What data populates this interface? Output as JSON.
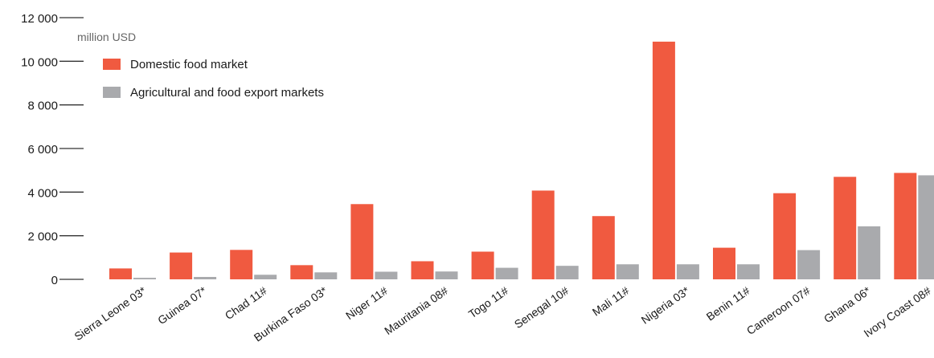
{
  "chart_data": {
    "type": "bar",
    "unit": "million USD",
    "categories": [
      "Sierra Leone 03*",
      "Guinea 07*",
      "Chad 11#",
      "Burkina Faso 03*",
      "Niger 11#",
      "Mauritania 08#",
      "Togo 11#",
      "Senegal 10#",
      "Mali 11#",
      "Nigeria 03*",
      "Benin 11#",
      "Cameroon 07#",
      "Ghana 06*",
      "Ivory Coast 08#"
    ],
    "series": [
      {
        "name": "Domestic food market",
        "color": "#f05a40",
        "values": [
          500,
          1230,
          1350,
          650,
          3450,
          830,
          1270,
          4070,
          2900,
          10900,
          1450,
          3950,
          4700,
          4880
        ]
      },
      {
        "name": "Agricultural and food export markets",
        "color": "#a9aaad",
        "values": [
          70,
          110,
          210,
          320,
          350,
          360,
          530,
          620,
          690,
          690,
          690,
          1340,
          2430,
          4770
        ]
      }
    ],
    "yticks": [
      0,
      2000,
      4000,
      6000,
      8000,
      10000,
      12000
    ],
    "ytick_labels": [
      "0",
      "2 000",
      "4 000",
      "6 000",
      "8 000",
      "10 000",
      "12 000"
    ],
    "ylim": [
      0,
      12000
    ],
    "grid": false,
    "legend_position": "top-left"
  }
}
